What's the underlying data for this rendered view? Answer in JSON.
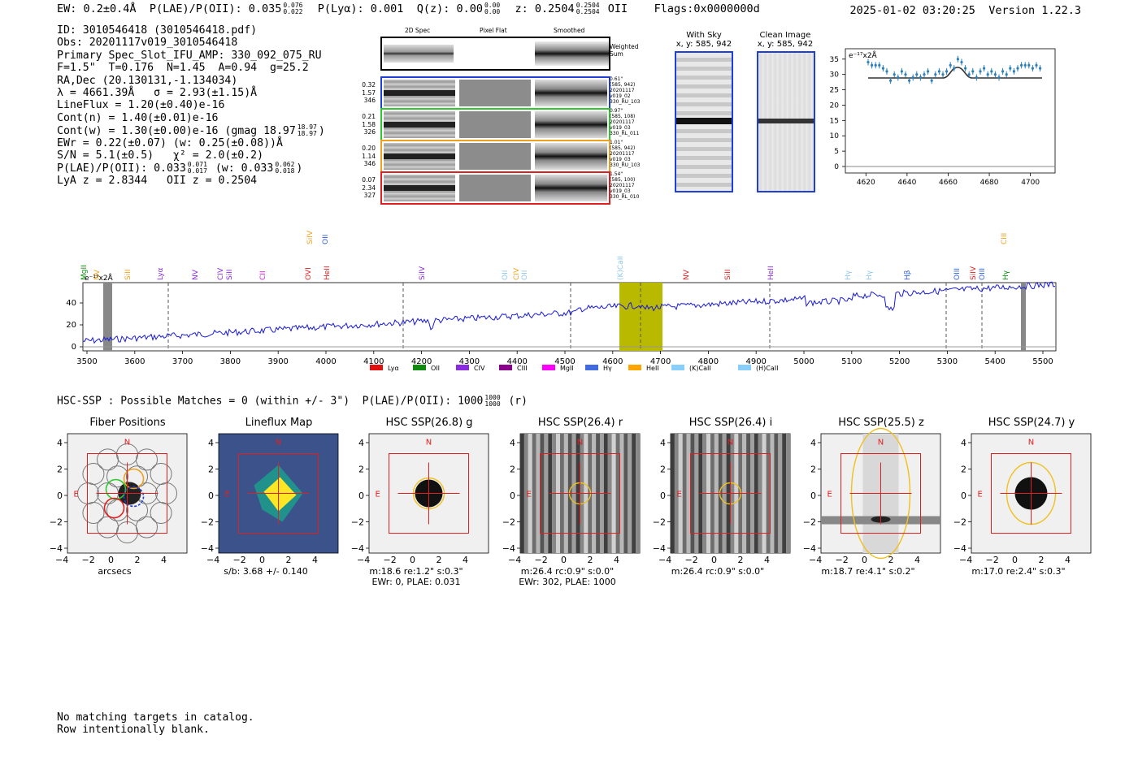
{
  "header": {
    "ew": "EW: 0.2±0.4Å",
    "plae_oii_label": "P(LAE)/P(OII):",
    "plae_oii_value": "0.035",
    "plae_oii_hi": "0.076",
    "plae_oii_lo": "0.022",
    "plya": "P(Lyα): 0.001",
    "qz_label": "Q(z):",
    "qz_value": "0.00",
    "qz_hi": "0.00",
    "qz_lo": "0.00",
    "z_label": "z:",
    "z_value": "0.2504",
    "z_hi": "0.2504",
    "z_lo": "0.2504",
    "z_line": "OII",
    "flags": "Flags:0x0000000d",
    "timestamp": "2025-01-02 03:20:25",
    "version": "Version 1.22.3"
  },
  "info": {
    "id": "ID: 3010546418 (3010546418.pdf)",
    "obs": "Obs: 20201117v019_3010546418",
    "primary": "Primary Spec_Slot_IFU_AMP: 330_092_075_RU",
    "fit": "F=1.5\"  T=0.176  N=1.45  A=0.94  g=25.2",
    "radec": "RA,Dec (20.130131,-1.134034)",
    "lambda": "λ = 4661.39Å   σ = 2.93(±1.15)Å",
    "lineflux": "LineFlux = 1.20(±0.40)e-16",
    "contn": "Cont(n) = 1.40(±0.01)e-16",
    "contw": "Cont(w) = 1.30(±0.00)e-16 (gmag 18.97",
    "contw_hi": "18.97",
    "contw_lo": "18.97",
    "ewr": "EWr = 0.22(±0.07) (w: 0.25(±0.08))Å",
    "sn": "S/N = 5.1(±0.5)   χ² = 2.0(±0.2)",
    "plae_a": "P(LAE)/P(OII): 0.033",
    "plae_a_hi": "0.071",
    "plae_a_lo": "0.017",
    "plae_b": "(w: 0.033",
    "plae_b_hi": "0.062",
    "plae_b_lo": "0.018",
    "lya_z": "LyA z = 2.8344   OII z = 0.2504"
  },
  "spec2d": {
    "col_titles": [
      "2D Spec",
      "Pixel Flat",
      "Smoothed"
    ],
    "weighted_sum": "Weighted Sum",
    "rows": [
      {
        "meta": [
          "0.32",
          "1.57",
          "346"
        ],
        "note": [
          "0.61\"",
          "(585, 942)",
          "20201117",
          "v019_02",
          "330_RU_103"
        ],
        "color": "#1f3fd6"
      },
      {
        "meta": [
          "0.21",
          "1.58",
          "326"
        ],
        "note": [
          "0.97\"",
          "(585, 108)",
          "20201117",
          "v019_03",
          "330_RL_011"
        ],
        "color": "#2ec92e"
      },
      {
        "meta": [
          "0.20",
          "1.14",
          "346"
        ],
        "note": [
          "1.01\"",
          "(585, 942)",
          "20201117",
          "v019_03",
          "330_RU_103"
        ],
        "color": "#f0a020"
      },
      {
        "meta": [
          "0.07",
          "2.34",
          "327"
        ],
        "note": [
          "1.54\"",
          "(585, 100)",
          "20201117",
          "v019_03",
          "330_RL_010"
        ],
        "color": "#e02020"
      }
    ]
  },
  "with_sky": {
    "title": "With Sky",
    "coords": "x, y: 585, 942"
  },
  "clean_image": {
    "title": "Clean Image",
    "coords": "x, y: 585, 942"
  },
  "zoom_chart": {
    "unit_label": "e⁻¹⁷x2Å",
    "yticks": [
      "0",
      "5",
      "10",
      "15",
      "20",
      "25",
      "30",
      "35"
    ],
    "xticks": [
      "4620",
      "4640",
      "4660",
      "4680",
      "4700"
    ]
  },
  "full_spectrum": {
    "unit_label": "e⁻¹⁷x2Å",
    "yticks": [
      "0",
      "20",
      "40"
    ],
    "xticks": [
      "3500",
      "3600",
      "3700",
      "3800",
      "3900",
      "4000",
      "4100",
      "4200",
      "4300",
      "4400",
      "4500",
      "4600",
      "4700",
      "4800",
      "4900",
      "5000",
      "5100",
      "5200",
      "5300",
      "5400",
      "5500"
    ],
    "line_labels": [
      {
        "t": "MgII",
        "c": "#0b8f0b"
      },
      {
        "t": "NV",
        "c": "#f0a020"
      },
      {
        "t": "SiII",
        "c": "#f0a020"
      },
      {
        "t": "Lyα",
        "c": "#8b2be2"
      },
      {
        "t": "NV",
        "c": "#8b2be2"
      },
      {
        "t": "CIV",
        "c": "#8b2be2"
      },
      {
        "t": "SiII",
        "c": "#8b2be2"
      },
      {
        "t": "CII",
        "c": "#e020e0"
      },
      {
        "t": "OVI",
        "c": "#e02020"
      },
      {
        "t": "SiIV",
        "c": "#f0a020"
      },
      {
        "t": "OII",
        "c": "#3060e0"
      },
      {
        "t": "HeII",
        "c": "#e02020"
      },
      {
        "t": "SiIV",
        "c": "#8b2be2"
      },
      {
        "t": "OII",
        "c": "#8ec8f0"
      },
      {
        "t": "CIV",
        "c": "#f0a020"
      },
      {
        "t": "OII",
        "c": "#8ec8f0"
      },
      {
        "t": "(K)CaII",
        "c": "#8ec8f0"
      },
      {
        "t": "NV",
        "c": "#e02020"
      },
      {
        "t": "SiII",
        "c": "#e02020"
      },
      {
        "t": "HeII",
        "c": "#8b2be2"
      },
      {
        "t": "Hγ",
        "c": "#8ec8f0"
      },
      {
        "t": "Hγ",
        "c": "#8ec8f0"
      },
      {
        "t": "Hβ",
        "c": "#3060e0"
      },
      {
        "t": "OIII",
        "c": "#3060e0"
      },
      {
        "t": "SiIV",
        "c": "#e02020"
      },
      {
        "t": "OIII",
        "c": "#3060e0"
      },
      {
        "t": "Hγ",
        "c": "#0b8f0b"
      },
      {
        "t": "CIII",
        "c": "#f0a020"
      }
    ],
    "legend": [
      {
        "label": "Lyα",
        "color": "#e01010"
      },
      {
        "label": "OII",
        "color": "#108a10"
      },
      {
        "label": "CIV",
        "color": "#8a2be2"
      },
      {
        "label": "CIII",
        "color": "#8b008b"
      },
      {
        "label": "MgII",
        "color": "#ff00ff"
      },
      {
        "label": "Hγ",
        "color": "#4169e1"
      },
      {
        "label": "HeII",
        "color": "#ffa500"
      },
      {
        "label": "(K)CaII",
        "color": "#87cefa"
      },
      {
        "label": "(H)CaII",
        "color": "#87cefa"
      }
    ]
  },
  "hsc_line": {
    "text": "HSC-SSP : Possible Matches = 0 (within +/- 3\")  P(LAE)/P(OII): 1000",
    "hi": "1000",
    "lo": "1000",
    "band": "(r)"
  },
  "thumbs": [
    {
      "title": "Fiber Positions",
      "caption1": "arcsecs",
      "caption2": ""
    },
    {
      "title": "Lineflux Map",
      "caption1": "s/b: 3.68 +/- 0.140",
      "caption2": ""
    },
    {
      "title": "HSC SSP(26.8) g",
      "caption1": "m:18.6  re:1.2\"  s:0.3\"",
      "caption2": "EWr: 0, PLAE: 0.031"
    },
    {
      "title": "HSC SSP(26.4) r",
      "caption1": "m:26.4 rc:0.9\"  s:0.0\"",
      "caption2": "EWr: 302, PLAE: 1000"
    },
    {
      "title": "HSC SSP(26.4) i",
      "caption1": "m:26.4 rc:0.9\"  s:0.0\"",
      "caption2": ""
    },
    {
      "title": "HSC SSP(25.5) z",
      "caption1": "m:18.7  re:4.1\"  s:0.2\"",
      "caption2": ""
    },
    {
      "title": "HSC SSP(24.7) y",
      "caption1": "m:17.0  re:2.4\"  s:0.3\"",
      "caption2": ""
    }
  ],
  "thumb_axes": {
    "yticks": [
      "4",
      "2",
      "0",
      "−2",
      "−4"
    ],
    "xticks": [
      "−4",
      "−2",
      "0",
      "2",
      "4"
    ],
    "north": "N",
    "east": "E"
  },
  "catalog": {
    "line1": "No matching targets in catalog.",
    "line2": "Row intentionally blank."
  }
}
